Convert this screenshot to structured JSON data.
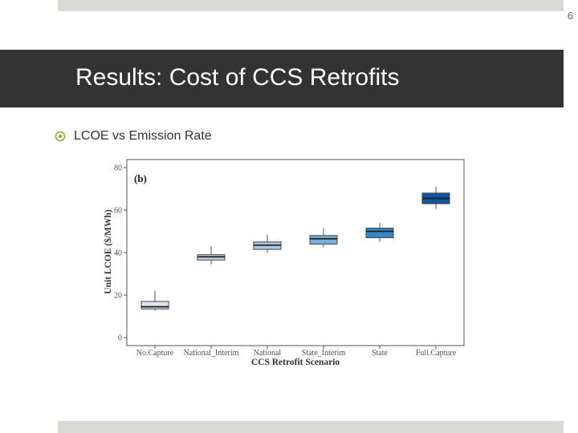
{
  "slide": {
    "page_number": "6",
    "title": "Results: Cost of CCS Retrofits",
    "bullet": "LCOE vs Emission Rate"
  },
  "colors": {
    "title_band": "#333333",
    "strip": "#d9dad4",
    "bullet_icon": "#9aa53a"
  },
  "chart_data": {
    "type": "box",
    "panel_label": "(b)",
    "xlabel": "CCS Retrofit Scenario",
    "ylabel": "Unit LCOE ($/MWh)",
    "ylim": [
      0,
      80
    ],
    "yticks": [
      0,
      20,
      40,
      60,
      80
    ],
    "grid": false,
    "categories": [
      "No.Capture",
      "National_Interim",
      "National",
      "State_Interim",
      "State",
      "Full.Capture"
    ],
    "boxes": [
      {
        "category": "No.Capture",
        "min": 12.5,
        "q1": 13.5,
        "median": 14.5,
        "q3": 17,
        "max": 22,
        "fill": "#dfe7f3"
      },
      {
        "category": "National_Interim",
        "min": 34.5,
        "q1": 36.5,
        "median": 38,
        "q3": 39,
        "max": 43,
        "fill": "#c2d6ea"
      },
      {
        "category": "National",
        "min": 40,
        "q1": 41.5,
        "median": 43.5,
        "q3": 45,
        "max": 48.5,
        "fill": "#a9c9e4"
      },
      {
        "category": "State_Interim",
        "min": 42.5,
        "q1": 44,
        "median": 46.5,
        "q3": 48,
        "max": 51.5,
        "fill": "#77afd8"
      },
      {
        "category": "State",
        "min": 45,
        "q1": 47,
        "median": 50,
        "q3": 51.5,
        "max": 54,
        "fill": "#3686c4"
      },
      {
        "category": "Full.Capture",
        "min": 60.5,
        "q1": 63,
        "median": 65.5,
        "q3": 68,
        "max": 71,
        "fill": "#0f57a3"
      }
    ]
  }
}
